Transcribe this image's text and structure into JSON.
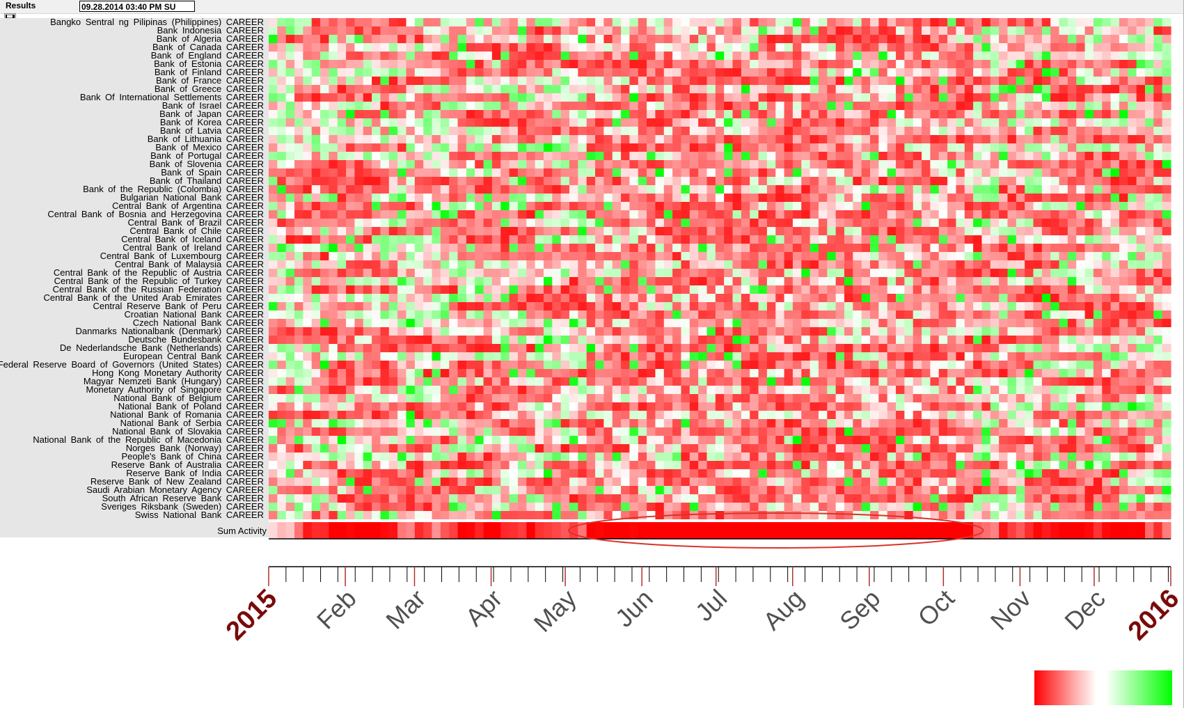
{
  "toolbar": {
    "title": "Results",
    "datetime": "09.28.2014  03:40 PM SU",
    "save_icon": "floppy-disk-icon"
  },
  "colors": {
    "negative": "#ff0000",
    "neutral": "#ffffff",
    "positive": "#00ff00",
    "axis_tick": "#8b0000",
    "year_label": "#7a0a0a",
    "month_label": "#505050",
    "highlight_ellipse": "#d9332b"
  },
  "chart_data": {
    "type": "heatmap",
    "rows": [
      "Bangko Sentral ng Pilipinas (Philippines) CAREER",
      "Bank Indonesia CAREER",
      "Bank of Algeria CAREER",
      "Bank of Canada CAREER",
      "Bank of England CAREER",
      "Bank of Estonia CAREER",
      "Bank of Finland CAREER",
      "Bank of France CAREER",
      "Bank of Greece CAREER",
      "Bank Of International Settlements CAREER",
      "Bank of Israel CAREER",
      "Bank of Japan CAREER",
      "Bank of Korea CAREER",
      "Bank of Latvia CAREER",
      "Bank of Lithuania CAREER",
      "Bank of Mexico CAREER",
      "Bank of Portugal CAREER",
      "Bank of Slovenia CAREER",
      "Bank of Spain CAREER",
      "Bank of Thailand CAREER",
      "Bank of the Republic (Colombia) CAREER",
      "Bulgarian National Bank CAREER",
      "Central Bank of Argentina CAREER",
      "Central Bank of Bosnia and Herzegovina CAREER",
      "Central Bank of Brazil CAREER",
      "Central Bank of Chile CAREER",
      "Central Bank of Iceland CAREER",
      "Central Bank of Ireland CAREER",
      "Central Bank of Luxembourg CAREER",
      "Central Bank of Malaysia CAREER",
      "Central Bank of the Republic of Austria CAREER",
      "Central Bank of the Republic of Turkey CAREER",
      "Central Bank of the Russian Federation CAREER",
      "Central Bank of the United Arab Emirates CAREER",
      "Central Reserve Bank of Peru CAREER",
      "Croatian National Bank CAREER",
      "Czech National Bank CAREER",
      "Danmarks Nationalbank (Denmark) CAREER",
      "Deutsche Bundesbank CAREER",
      "De Nederlandsche Bank (Netherlands) CAREER",
      "European Central Bank CAREER",
      "Federal Reserve Board of Governors (United States) CAREER",
      "Hong Kong Monetary Authority CAREER",
      "Magyar Nemzeti Bank (Hungary) CAREER",
      "Monetary Authority of Singapore CAREER",
      "National Bank of Belgium CAREER",
      "National Bank of Poland CAREER",
      "National Bank of Romania CAREER",
      "National Bank of Serbia CAREER",
      "National Bank of Slovakia CAREER",
      "National Bank of the Republic of Macedonia CAREER",
      "Norges Bank (Norway) CAREER",
      "People's Bank of China CAREER",
      "Reserve Bank of Australia CAREER",
      "Reserve Bank of India CAREER",
      "Reserve Bank of New Zealand CAREER",
      "Saudi Arabian Monetary Agency CAREER",
      "South African Reserve Bank CAREER",
      "Sveriges Riksbank (Sweden) CAREER",
      "Swiss National Bank CAREER"
    ],
    "sum_label": "Sum Activity",
    "x_ticks": [
      "2015",
      "Feb",
      "Mar",
      "Apr",
      "May",
      "Jun",
      "Jul",
      "Aug",
      "Sep",
      "Oct",
      "Nov",
      "Dec",
      "2016"
    ],
    "x_range": [
      "2015-01-01",
      "2016-01-01"
    ],
    "weeks": 105,
    "highlight_period": [
      "2015-05-08",
      "2015-10-12"
    ],
    "color_scale": [
      "negative",
      "neutral",
      "positive"
    ],
    "grid": false
  }
}
